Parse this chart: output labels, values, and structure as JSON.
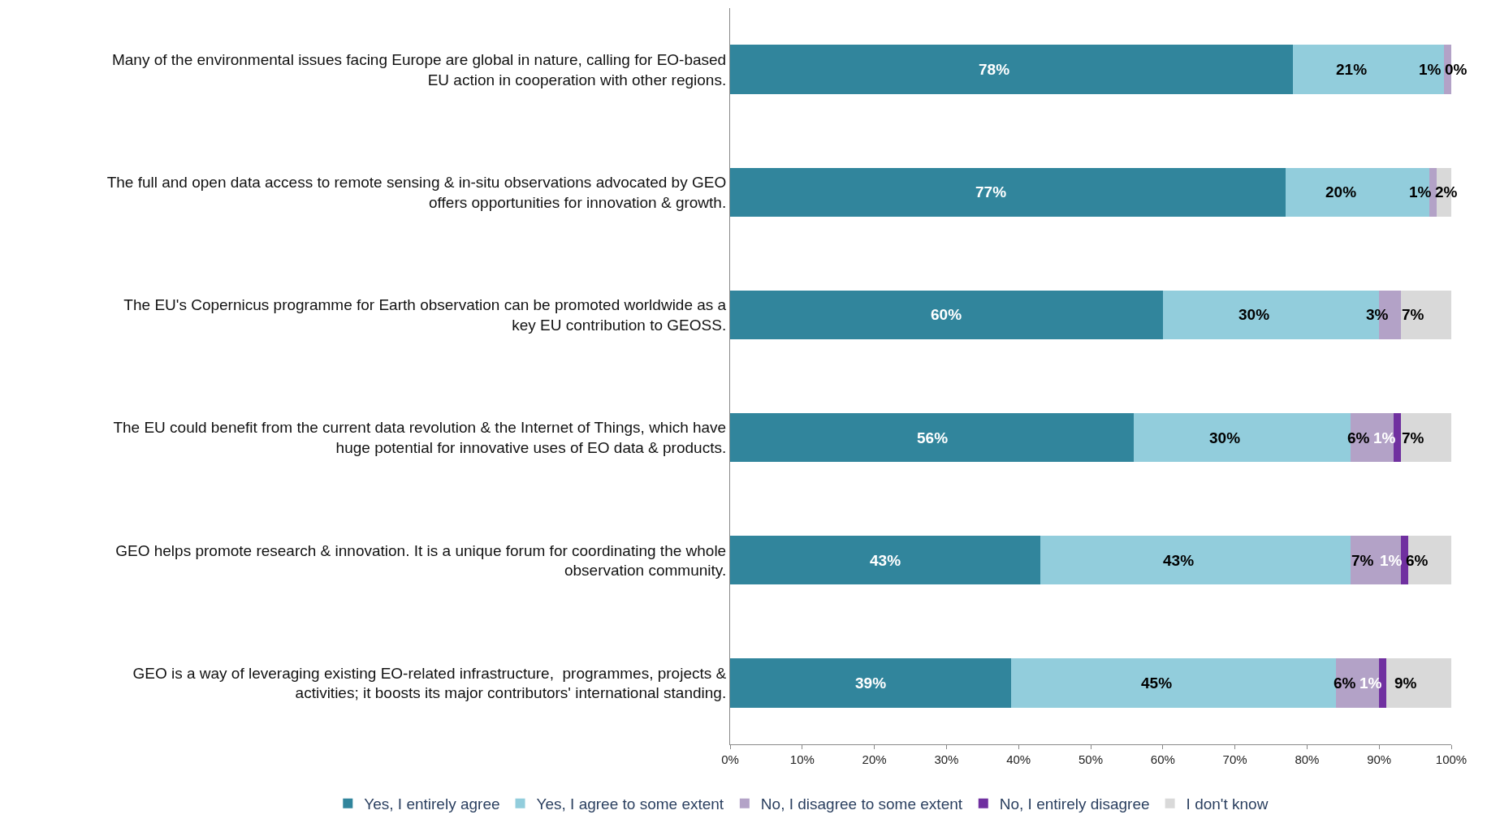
{
  "chart_data": {
    "type": "bar",
    "orientation": "horizontal",
    "stacked": true,
    "legend": "bottom",
    "categories": [
      "Many of the environmental issues facing Europe are global in nature, calling for EO-based\nEU action in cooperation with other regions.",
      "The full and open data access to remote sensing & in-situ observations advocated by GEO\noffers opportunities for innovation & growth.",
      "The EU's Copernicus programme for Earth observation can be promoted worldwide as a\nkey EU contribution to GEOSS.",
      "The EU could benefit from the current data revolution & the Internet of Things, which have\nhuge potential for innovative uses of EO data & products.",
      "GEO helps promote research & innovation. It is a unique forum for coordinating the whole\nobservation community.",
      "GEO is a way of leveraging existing EO-related infrastructure,  programmes, projects &\nactivities; it boosts its major contributors' international standing."
    ],
    "series": [
      {
        "name": "Yes, I entirely agree",
        "color": "#31859c",
        "values": [
          78,
          77,
          60,
          56,
          43,
          39
        ],
        "value_labels": [
          "78%",
          "77%",
          "60%",
          "56%",
          "43%",
          "39%"
        ]
      },
      {
        "name": "Yes, I agree to some extent",
        "color": "#92cddc",
        "values": [
          21,
          20,
          30,
          30,
          43,
          45
        ],
        "value_labels": [
          "21%",
          "20%",
          "30%",
          "30%",
          "43%",
          "45%"
        ]
      },
      {
        "name": "No, I disagree to some extent",
        "color": "#b3a2c7",
        "values": [
          1,
          1,
          3,
          6,
          7,
          6
        ],
        "value_labels": [
          "1%",
          "1%",
          "3%",
          "6%",
          "7%",
          "6%"
        ]
      },
      {
        "name": "No, I entirely disagree",
        "color": "#7030a0",
        "values": [
          0,
          0,
          0,
          1,
          1,
          1
        ],
        "value_labels": [
          "0%",
          null,
          null,
          "1%",
          "1%",
          "1%"
        ]
      },
      {
        "name": "I don't know",
        "color": "#d9d9d9",
        "values": [
          0,
          2,
          7,
          7,
          6,
          9
        ],
        "value_labels": [
          null,
          "2%",
          "7%",
          "7%",
          "6%",
          "9%"
        ]
      }
    ],
    "xlim": [
      0,
      100
    ],
    "xticks": [
      {
        "value": 0,
        "label": "0%"
      },
      {
        "value": 10,
        "label": "10%"
      },
      {
        "value": 20,
        "label": "20%"
      },
      {
        "value": 30,
        "label": "30%"
      },
      {
        "value": 40,
        "label": "40%"
      },
      {
        "value": 50,
        "label": "50%"
      },
      {
        "value": 60,
        "label": "60%"
      },
      {
        "value": 70,
        "label": "70%"
      },
      {
        "value": 80,
        "label": "80%"
      },
      {
        "value": 90,
        "label": "90%"
      },
      {
        "value": 100,
        "label": "100%"
      }
    ]
  }
}
